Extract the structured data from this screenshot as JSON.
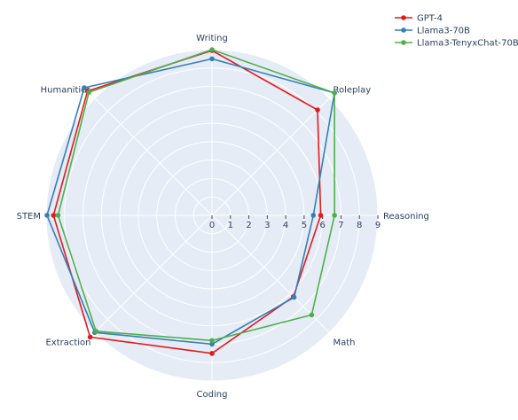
{
  "chart_data": {
    "type": "radar",
    "categories": [
      "Writing",
      "Roleplay",
      "Reasoning",
      "Math",
      "Coding",
      "Extraction",
      "STEM",
      "Humanities"
    ],
    "radial_ticks": [
      "0",
      "1",
      "2",
      "3",
      "4",
      "5",
      "6",
      "7",
      "8",
      "9"
    ],
    "rlim": [
      0,
      9
    ],
    "grid": true,
    "legend_position": "top-right",
    "series": [
      {
        "name": "GPT-4",
        "color": "#e31a1c",
        "values": [
          8.95,
          8.1,
          5.9,
          6.25,
          7.5,
          9.35,
          8.6,
          9.55
        ]
      },
      {
        "name": "Llama3-70B",
        "color": "#377eb8",
        "values": [
          8.5,
          9.4,
          5.5,
          6.3,
          7.0,
          9.0,
          8.95,
          9.8
        ]
      },
      {
        "name": "Llama3-TenyxChat-70B",
        "color": "#4daf4a",
        "values": [
          9.0,
          9.4,
          6.65,
          7.65,
          6.8,
          8.9,
          8.35,
          9.45
        ]
      }
    ]
  }
}
